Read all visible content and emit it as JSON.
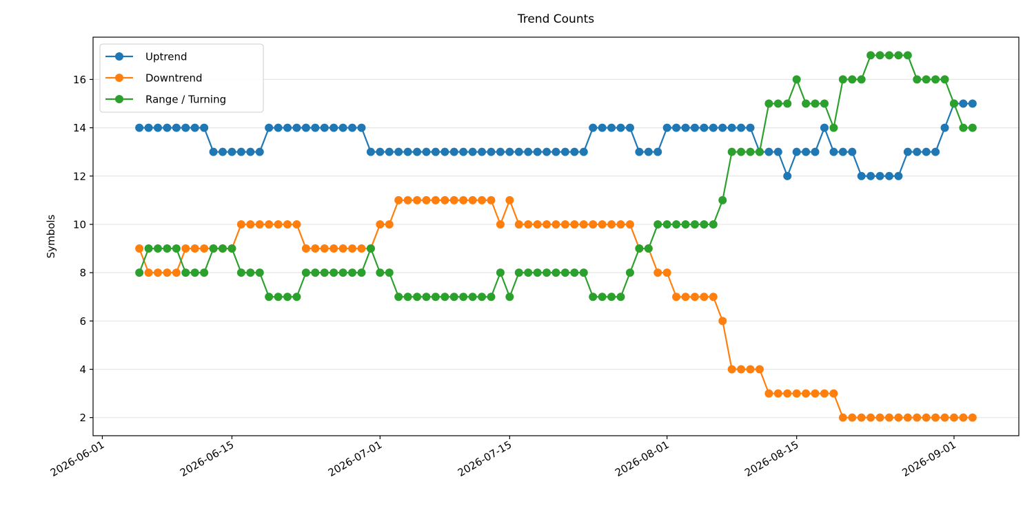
{
  "chart_data": {
    "type": "line",
    "title": "Trend Counts",
    "xlabel": "",
    "ylabel": "Symbols",
    "x": [
      "2026-06-05",
      "2026-06-06",
      "2026-06-07",
      "2026-06-08",
      "2026-06-09",
      "2026-06-10",
      "2026-06-11",
      "2026-06-12",
      "2026-06-13",
      "2026-06-14",
      "2026-06-15",
      "2026-06-16",
      "2026-06-17",
      "2026-06-18",
      "2026-06-19",
      "2026-06-20",
      "2026-06-21",
      "2026-06-22",
      "2026-06-23",
      "2026-06-24",
      "2026-06-25",
      "2026-06-26",
      "2026-06-27",
      "2026-06-28",
      "2026-06-29",
      "2026-06-30",
      "2026-07-01",
      "2026-07-02",
      "2026-07-03",
      "2026-07-04",
      "2026-07-05",
      "2026-07-06",
      "2026-07-07",
      "2026-07-08",
      "2026-07-09",
      "2026-07-10",
      "2026-07-11",
      "2026-07-12",
      "2026-07-13",
      "2026-07-14",
      "2026-07-15",
      "2026-07-16",
      "2026-07-17",
      "2026-07-18",
      "2026-07-19",
      "2026-07-20",
      "2026-07-21",
      "2026-07-22",
      "2026-07-23",
      "2026-07-24",
      "2026-07-25",
      "2026-07-26",
      "2026-07-27",
      "2026-07-28",
      "2026-07-29",
      "2026-07-30",
      "2026-07-31",
      "2026-08-01",
      "2026-08-02",
      "2026-08-03",
      "2026-08-04",
      "2026-08-05",
      "2026-08-06",
      "2026-08-07",
      "2026-08-08",
      "2026-08-09",
      "2026-08-10",
      "2026-08-11",
      "2026-08-12",
      "2026-08-13",
      "2026-08-14",
      "2026-08-15",
      "2026-08-16",
      "2026-08-17",
      "2026-08-18",
      "2026-08-19",
      "2026-08-20",
      "2026-08-21",
      "2026-08-22",
      "2026-08-23",
      "2026-08-24",
      "2026-08-25",
      "2026-08-26",
      "2026-08-27",
      "2026-08-28",
      "2026-08-29",
      "2026-08-30",
      "2026-08-31",
      "2026-09-01",
      "2026-09-02",
      "2026-09-03"
    ],
    "series": [
      {
        "name": "Uptrend",
        "color": "#1f77b4",
        "values": [
          14,
          14,
          14,
          14,
          14,
          14,
          14,
          14,
          13,
          13,
          13,
          13,
          13,
          13,
          14,
          14,
          14,
          14,
          14,
          14,
          14,
          14,
          14,
          14,
          14,
          13,
          13,
          13,
          13,
          13,
          13,
          13,
          13,
          13,
          13,
          13,
          13,
          13,
          13,
          13,
          13,
          13,
          13,
          13,
          13,
          13,
          13,
          13,
          13,
          14,
          14,
          14,
          14,
          14,
          13,
          13,
          13,
          14,
          14,
          14,
          14,
          14,
          14,
          14,
          14,
          14,
          14,
          13,
          13,
          13,
          12,
          13,
          13,
          13,
          14,
          13,
          13,
          13,
          12,
          12,
          12,
          12,
          12,
          13,
          13,
          13,
          13,
          14,
          15,
          15,
          15
        ]
      },
      {
        "name": "Downtrend",
        "color": "#ff7f0e",
        "values": [
          9,
          8,
          8,
          8,
          8,
          9,
          9,
          9,
          9,
          9,
          9,
          10,
          10,
          10,
          10,
          10,
          10,
          10,
          9,
          9,
          9,
          9,
          9,
          9,
          9,
          9,
          10,
          10,
          11,
          11,
          11,
          11,
          11,
          11,
          11,
          11,
          11,
          11,
          11,
          10,
          11,
          10,
          10,
          10,
          10,
          10,
          10,
          10,
          10,
          10,
          10,
          10,
          10,
          10,
          9,
          9,
          8,
          8,
          7,
          7,
          7,
          7,
          7,
          6,
          4,
          4,
          4,
          4,
          3,
          3,
          3,
          3,
          3,
          3,
          3,
          3,
          2,
          2,
          2,
          2,
          2,
          2,
          2,
          2,
          2,
          2,
          2,
          2,
          2,
          2,
          2
        ]
      },
      {
        "name": "Range / Turning",
        "color": "#2ca02c",
        "values": [
          8,
          9,
          9,
          9,
          9,
          8,
          8,
          8,
          9,
          9,
          9,
          8,
          8,
          8,
          7,
          7,
          7,
          7,
          8,
          8,
          8,
          8,
          8,
          8,
          8,
          9,
          8,
          8,
          7,
          7,
          7,
          7,
          7,
          7,
          7,
          7,
          7,
          7,
          7,
          8,
          7,
          8,
          8,
          8,
          8,
          8,
          8,
          8,
          8,
          7,
          7,
          7,
          7,
          8,
          9,
          9,
          10,
          10,
          10,
          10,
          10,
          10,
          10,
          11,
          13,
          13,
          13,
          13,
          15,
          15,
          15,
          16,
          15,
          15,
          15,
          14,
          16,
          16,
          16,
          17,
          17,
          17,
          17,
          17,
          16,
          16,
          16,
          16,
          15,
          14,
          14
        ]
      }
    ],
    "xlim": [
      "2026-05-31",
      "2026-09-08"
    ],
    "ylim": [
      1.25,
      17.75
    ],
    "xticks": [
      "2026-06-01",
      "2026-06-15",
      "2026-07-01",
      "2026-07-15",
      "2026-08-01",
      "2026-08-15",
      "2026-09-01"
    ],
    "yticks": [
      2,
      4,
      6,
      8,
      10,
      12,
      14,
      16
    ],
    "grid": "horizontal",
    "legend_position": "top-left"
  }
}
